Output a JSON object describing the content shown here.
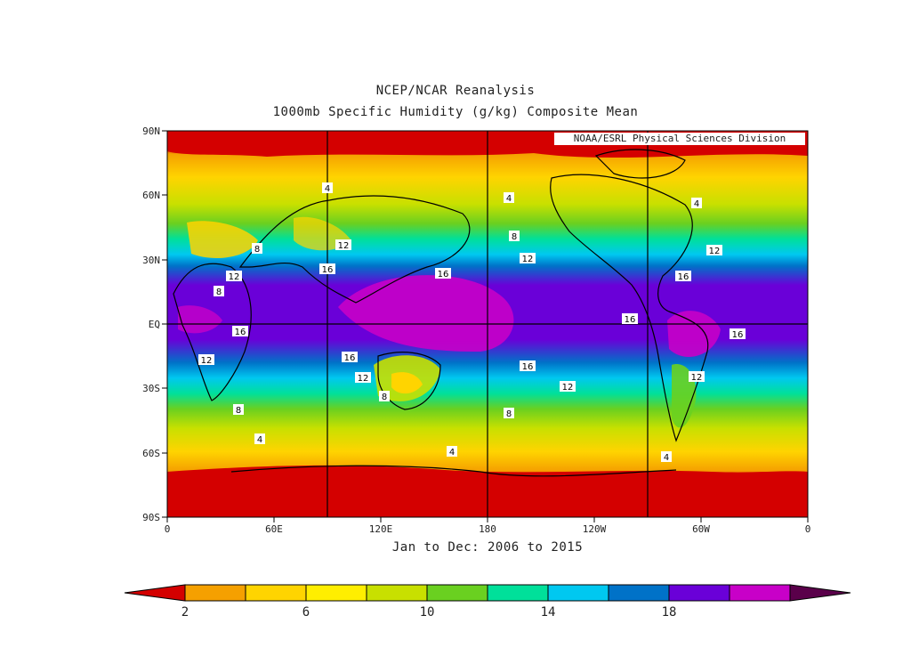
{
  "header": {
    "title_line1": "NCEP/NCAR Reanalysis",
    "title_line2": "1000mb Specific Humidity (g/kg) Composite Mean",
    "credit": "NOAA/ESRL Physical Sciences Division"
  },
  "footer": {
    "period": "Jan to Dec: 2006 to 2015"
  },
  "axes": {
    "y_ticks": [
      "90N",
      "60N",
      "30N",
      "EQ",
      "30S",
      "60S",
      "90S"
    ],
    "x_ticks": [
      "0",
      "60E",
      "120E",
      "180",
      "120W",
      "60W",
      "0"
    ]
  },
  "contour_labels": [
    "4",
    "8",
    "12",
    "16"
  ],
  "colorbar": {
    "tick_labels": [
      "2",
      "6",
      "10",
      "14",
      "18"
    ],
    "colors": [
      "#d40000",
      "#f5a000",
      "#ffd400",
      "#ffee00",
      "#c8e000",
      "#6ad020",
      "#00e09a",
      "#00c8f0",
      "#0072c8",
      "#6a00d8",
      "#c800c8",
      "#5a004a"
    ]
  }
}
